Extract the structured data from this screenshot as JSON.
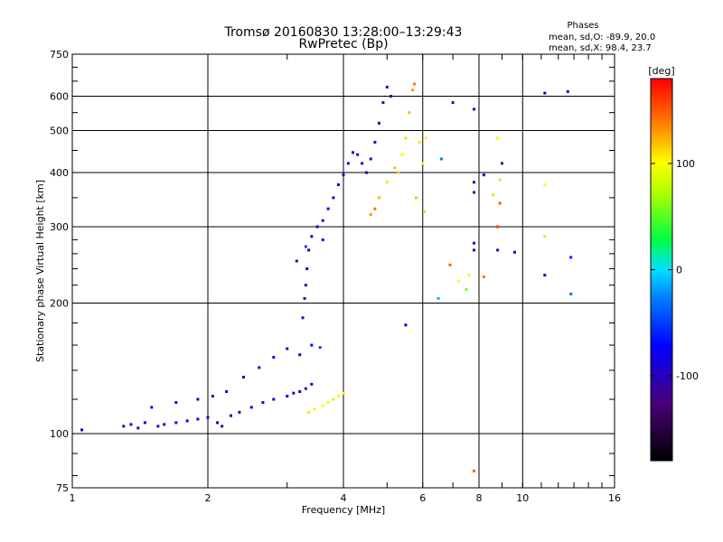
{
  "chart_data": {
    "type": "scatter",
    "title": "Tromsø 20160830 13:28:00–13:29:43",
    "subtitle": "RwPretec (Bp)",
    "xlabel": "Frequency [MHz]",
    "ylabel": "Stationary phase Virtual Height [km]",
    "xscale": "log",
    "yscale": "log",
    "xlim": [
      1,
      16
    ],
    "ylim": [
      75,
      750
    ],
    "x_ticks": [
      1,
      2,
      4,
      6,
      8,
      10,
      16
    ],
    "x_tick_labels": [
      "1",
      "2",
      "4",
      "6",
      "8",
      "10",
      "16"
    ],
    "x_grid": [
      2,
      4,
      6,
      8,
      10
    ],
    "y_ticks": [
      75,
      100,
      200,
      300,
      400,
      500,
      600,
      750
    ],
    "y_tick_labels": [
      "75",
      "100",
      "200",
      "300",
      "400",
      "500",
      "600",
      "750"
    ],
    "y_grid": [
      100,
      200,
      300,
      400,
      500,
      600
    ],
    "grid": true,
    "legend": {
      "title": "Phases",
      "lines": [
        "mean, sd,O: -89.9, 20.0",
        "mean, sd,X:  98.4, 23.7"
      ]
    },
    "colorbar": {
      "label": "[deg]",
      "range": [
        -180,
        180
      ],
      "ticks": [
        100,
        0,
        -100
      ],
      "tick_labels": [
        "100",
        "0",
        "-100"
      ]
    },
    "series": [
      {
        "points": [
          [
            1.05,
            102,
            -100
          ],
          [
            1.3,
            104,
            -95
          ],
          [
            1.35,
            105,
            -110
          ],
          [
            1.4,
            103,
            -100
          ],
          [
            1.45,
            106,
            -90
          ],
          [
            1.55,
            104,
            -100
          ],
          [
            1.6,
            105,
            -95
          ],
          [
            1.7,
            106,
            -100
          ],
          [
            1.8,
            107,
            -90
          ],
          [
            1.9,
            108,
            -100
          ],
          [
            2.0,
            109,
            -95
          ],
          [
            2.1,
            106,
            -100
          ],
          [
            2.15,
            104,
            -110
          ],
          [
            2.25,
            110,
            -90
          ],
          [
            2.35,
            112,
            -100
          ],
          [
            2.5,
            115,
            -95
          ],
          [
            2.65,
            118,
            -90
          ],
          [
            2.8,
            120,
            -100
          ],
          [
            3.0,
            122,
            -85
          ],
          [
            3.1,
            124,
            -95
          ],
          [
            3.2,
            125,
            -90
          ],
          [
            3.3,
            127,
            -100
          ],
          [
            3.4,
            130,
            -80
          ],
          [
            1.5,
            115,
            -90
          ],
          [
            1.7,
            118,
            -100
          ],
          [
            1.9,
            120,
            -80
          ],
          [
            2.05,
            122,
            -95
          ],
          [
            2.2,
            125,
            -100
          ],
          [
            2.4,
            135,
            -85
          ],
          [
            2.6,
            142,
            -100
          ],
          [
            2.8,
            150,
            -90
          ],
          [
            3.0,
            157,
            -85
          ],
          [
            3.2,
            152,
            -80
          ],
          [
            3.4,
            160,
            -70
          ],
          [
            3.55,
            158,
            -50
          ],
          [
            3.25,
            185,
            -100
          ],
          [
            3.28,
            205,
            -110
          ],
          [
            3.3,
            220,
            -100
          ],
          [
            3.32,
            240,
            -90
          ],
          [
            3.35,
            265,
            -100
          ],
          [
            3.4,
            285,
            -95
          ],
          [
            3.5,
            300,
            -90
          ],
          [
            3.6,
            310,
            -100
          ],
          [
            3.7,
            330,
            -95
          ],
          [
            3.8,
            350,
            -90
          ],
          [
            3.9,
            375,
            -100
          ],
          [
            4.0,
            395,
            -95
          ],
          [
            4.1,
            420,
            -100
          ],
          [
            4.2,
            445,
            -90
          ],
          [
            4.3,
            440,
            -95
          ],
          [
            4.4,
            420,
            -100
          ],
          [
            4.5,
            400,
            -90
          ],
          [
            4.6,
            430,
            -95
          ],
          [
            4.7,
            470,
            -100
          ],
          [
            4.8,
            520,
            -95
          ],
          [
            4.9,
            580,
            -100
          ],
          [
            5.0,
            630,
            -90
          ],
          [
            5.1,
            600,
            -85
          ],
          [
            5.5,
            178,
            -80
          ],
          [
            6.6,
            430,
            -30
          ],
          [
            7.0,
            580,
            -90
          ],
          [
            7.8,
            560,
            -95
          ],
          [
            7.8,
            380,
            -100
          ],
          [
            7.8,
            360,
            -110
          ],
          [
            7.8,
            275,
            -90
          ],
          [
            7.8,
            265,
            -95
          ],
          [
            8.2,
            395,
            -110
          ],
          [
            9.0,
            420,
            -120
          ],
          [
            8.8,
            265,
            -95
          ],
          [
            9.6,
            262,
            -90
          ],
          [
            11.2,
            610,
            -85
          ],
          [
            12.6,
            615,
            -110
          ],
          [
            11.2,
            232,
            -90
          ],
          [
            12.8,
            255,
            -60
          ],
          [
            12.8,
            210,
            -30
          ],
          [
            6.5,
            205,
            -10
          ],
          [
            7.5,
            215,
            60
          ],
          [
            3.3,
            270,
            -50
          ],
          [
            3.15,
            250,
            -120
          ],
          [
            3.6,
            280,
            -70
          ]
        ]
      },
      {
        "points": [
          [
            3.35,
            112,
            110
          ],
          [
            3.45,
            114,
            105
          ],
          [
            3.6,
            116,
            100
          ],
          [
            3.7,
            118,
            95
          ],
          [
            3.8,
            120,
            110
          ],
          [
            3.9,
            122,
            105
          ],
          [
            4.0,
            124,
            100
          ],
          [
            4.6,
            320,
            130
          ],
          [
            4.8,
            350,
            120
          ],
          [
            5.0,
            380,
            110
          ],
          [
            5.2,
            410,
            120
          ],
          [
            5.4,
            440,
            105
          ],
          [
            5.5,
            480,
            110
          ],
          [
            5.6,
            550,
            120
          ],
          [
            5.7,
            620,
            130
          ],
          [
            5.75,
            640,
            140
          ],
          [
            5.9,
            470,
            110
          ],
          [
            6.0,
            420,
            100
          ],
          [
            6.05,
            325,
            115
          ],
          [
            6.1,
            480,
            95
          ],
          [
            6.9,
            245,
            150
          ],
          [
            7.2,
            225,
            100
          ],
          [
            7.6,
            232,
            90
          ],
          [
            7.8,
            82,
            150
          ],
          [
            8.2,
            230,
            140
          ],
          [
            8.6,
            355,
            110
          ],
          [
            8.8,
            300,
            160
          ],
          [
            8.8,
            480,
            95
          ],
          [
            8.9,
            340,
            150
          ],
          [
            8.9,
            385,
            110
          ],
          [
            11.2,
            375,
            100
          ],
          [
            11.2,
            285,
            110
          ],
          [
            4.7,
            330,
            140
          ],
          [
            5.3,
            400,
            115
          ],
          [
            5.8,
            350,
            120
          ]
        ]
      }
    ]
  }
}
